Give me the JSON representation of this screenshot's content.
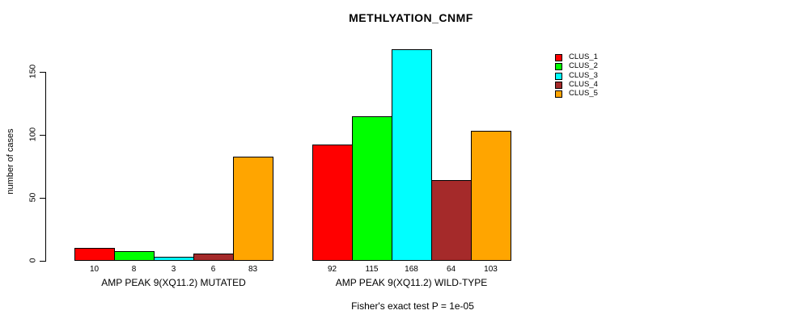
{
  "chart": {
    "title": "METHLYATION_CNMF",
    "ylabel": "number of cases",
    "caption": "Fisher's exact test P = 1e-05"
  },
  "chart_data": {
    "type": "bar",
    "title": "METHLYATION_CNMF",
    "xlabel": "",
    "ylabel": "number of cases",
    "yticks": [
      0,
      50,
      100,
      150
    ],
    "ylim": [
      0,
      168
    ],
    "grid": false,
    "legend_position": "top-right",
    "categories": [
      "CLUS_1",
      "CLUS_2",
      "CLUS_3",
      "CLUS_4",
      "CLUS_5"
    ],
    "colors": [
      "#FF0000",
      "#00FF00",
      "#00FFFF",
      "#A52A2A",
      "#FFA500"
    ],
    "groups": [
      {
        "label": "AMP PEAK 9(XQ11.2) MUTATED",
        "values": [
          10,
          8,
          3,
          6,
          83
        ]
      },
      {
        "label": "AMP PEAK 9(XQ11.2) WILD-TYPE",
        "values": [
          92,
          115,
          168,
          64,
          103
        ]
      }
    ],
    "annotation": "Fisher's exact test P = 1e-05"
  }
}
